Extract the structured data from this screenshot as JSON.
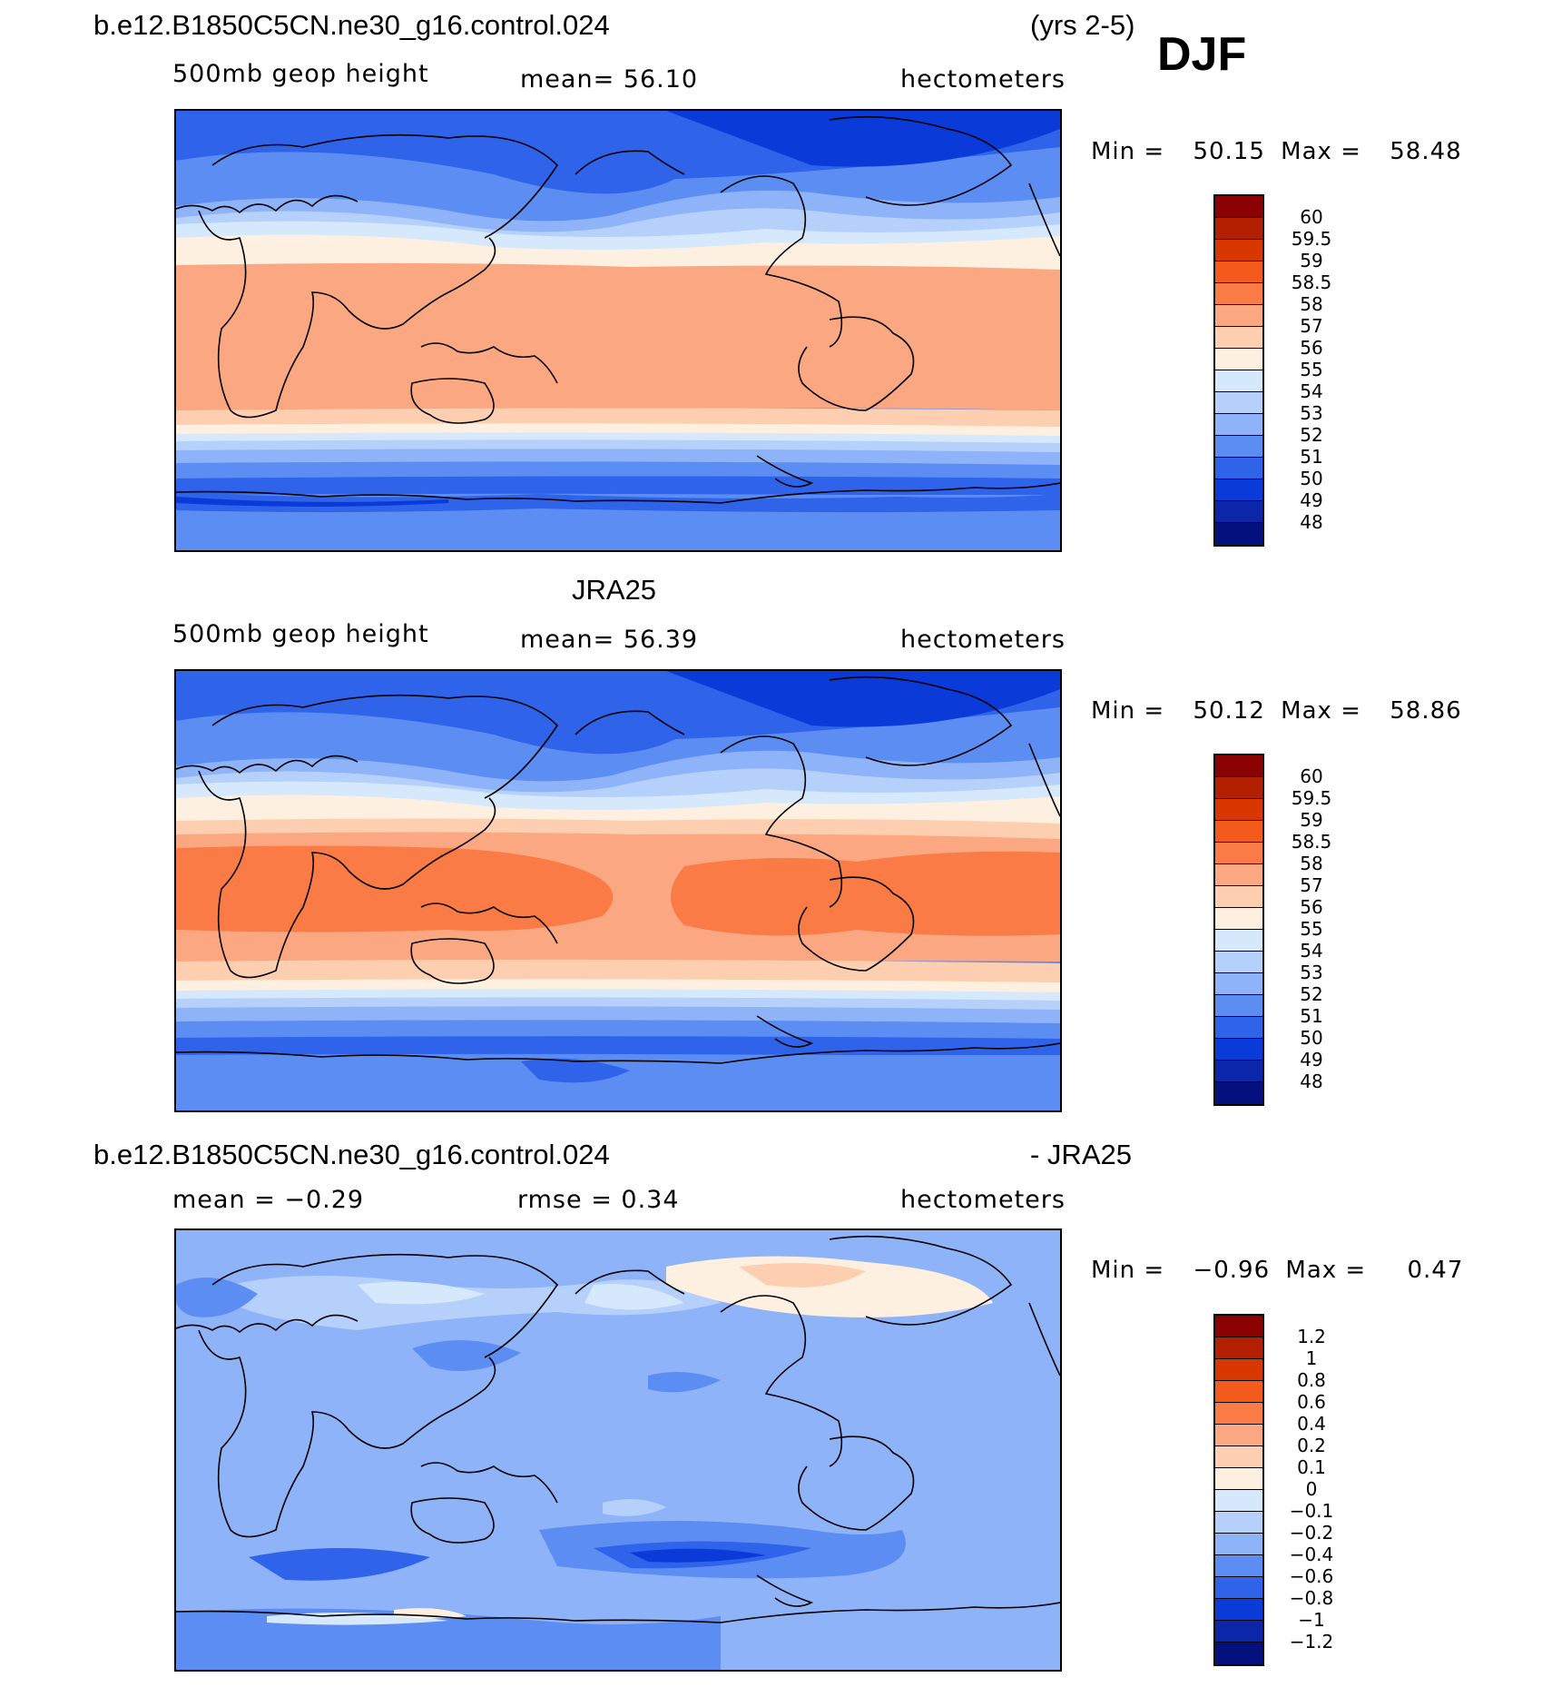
{
  "figure": {
    "season": "DJF",
    "years": "(yrs 2-5)",
    "case_name": "b.e12.B1850C5CN.ne30_g16.control.024",
    "reference": "JRA25",
    "diff_suffix": "- JRA25"
  },
  "panels": [
    {
      "id": "model",
      "variable": "500mb geop height",
      "stat_text": "mean=   56.10",
      "units": "hectometers",
      "min_label": "Min =",
      "min_value": "50.15",
      "max_label": "Max =",
      "max_value": "58.48",
      "colorbar_labels": [
        "60",
        "59.5",
        "59",
        "58.5",
        "58",
        "57",
        "56",
        "55",
        "54",
        "53",
        "52",
        "51",
        "50",
        "49",
        "48"
      ]
    },
    {
      "id": "reference",
      "variable": "500mb geop height",
      "stat_text": "mean=   56.39",
      "units": "hectometers",
      "min_label": "Min =",
      "min_value": "50.12",
      "max_label": "Max =",
      "max_value": "58.86",
      "colorbar_labels": [
        "60",
        "59.5",
        "59",
        "58.5",
        "58",
        "57",
        "56",
        "55",
        "54",
        "53",
        "52",
        "51",
        "50",
        "49",
        "48"
      ]
    },
    {
      "id": "difference",
      "stat_mean": "mean =   −0.29",
      "stat_rmse": "rmse =    0.34",
      "units": "hectometers",
      "min_label": "Min =",
      "min_value": "−0.96",
      "max_label": "Max =",
      "max_value": "0.47",
      "colorbar_labels": [
        "1.2",
        "1",
        "0.8",
        "0.6",
        "0.4",
        "0.2",
        "0.1",
        "0",
        "−0.1",
        "−0.2",
        "−0.4",
        "−0.6",
        "−0.8",
        "−1",
        "−1.2"
      ]
    }
  ],
  "colors": {
    "scale": [
      "#8b0000",
      "#b22000",
      "#d83800",
      "#f45a1c",
      "#fa7b46",
      "#fba882",
      "#fdcfb0",
      "#fdf0e0",
      "#d6e8fb",
      "#b5d0fa",
      "#8fb3f8",
      "#5c8df2",
      "#2f63ea",
      "#0a3ad8",
      "#0b26a8",
      "#04107e"
    ]
  }
}
